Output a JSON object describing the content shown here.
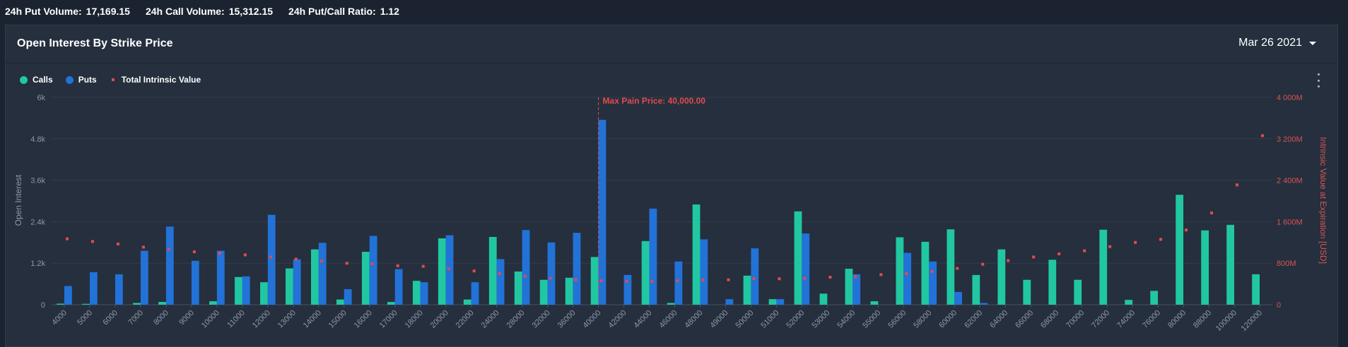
{
  "stats": {
    "put_volume_label": "24h Put Volume:",
    "put_volume_value": "17,169.15",
    "call_volume_label": "24h Call Volume:",
    "call_volume_value": "15,312.15",
    "ratio_label": "24h Put/Call Ratio:",
    "ratio_value": "1.12"
  },
  "panel": {
    "title": "Open Interest By Strike Price",
    "date": "Mar 26 2021"
  },
  "legend": {
    "calls": "Calls",
    "puts": "Puts",
    "intrinsic": "Total Intrinsic Value"
  },
  "icons": {
    "caret": "chevron-down-icon",
    "menu": "more-vertical-icon"
  },
  "colors": {
    "calls": "#21c7a1",
    "puts": "#2272d8",
    "intrinsic": "#e64a4a",
    "background": "#1b2330",
    "panel": "#252f3e"
  },
  "chart_data": {
    "type": "bar",
    "title": "Open Interest By Strike Price",
    "xlabel": "",
    "ylabel": "Open Interest",
    "y2label": "Intrinsic Value at Expiration [USD]",
    "ylim": [
      0,
      6000
    ],
    "y2lim": [
      0,
      4000000000
    ],
    "y_ticks": [
      "0",
      "1.2k",
      "2.4k",
      "3.6k",
      "4.8k",
      "6k"
    ],
    "y2_ticks": [
      "0",
      "800M",
      "1 600M",
      "2 400M",
      "3 200M",
      "4 000M"
    ],
    "max_pain_label": "Max Pain Price: 40,000.00",
    "max_pain_strike": "40000",
    "categories": [
      "4000",
      "5000",
      "6000",
      "7000",
      "8000",
      "9000",
      "10000",
      "11000",
      "12000",
      "13000",
      "14000",
      "15000",
      "16000",
      "17000",
      "18000",
      "20000",
      "22000",
      "24000",
      "28000",
      "32000",
      "36000",
      "40000",
      "42000",
      "44000",
      "46000",
      "48000",
      "49000",
      "50000",
      "51000",
      "52000",
      "53000",
      "54000",
      "55000",
      "56000",
      "58000",
      "60000",
      "62000",
      "64000",
      "66000",
      "68000",
      "70000",
      "72000",
      "74000",
      "76000",
      "80000",
      "88000",
      "100000",
      "120000"
    ],
    "series": [
      {
        "name": "Calls",
        "values": [
          30,
          25,
          0,
          50,
          80,
          0,
          100,
          800,
          650,
          1050,
          1600,
          150,
          1530,
          80,
          690,
          1920,
          150,
          1960,
          960,
          720,
          780,
          1380,
          0,
          1840,
          50,
          2900,
          0,
          840,
          160,
          2700,
          320,
          1040,
          100,
          1950,
          1820,
          2180,
          860,
          1600,
          720,
          1300,
          720,
          2170,
          140,
          400,
          3180,
          2150,
          2310,
          880
        ]
      },
      {
        "name": "Puts",
        "values": [
          540,
          940,
          880,
          1560,
          2260,
          1270,
          1560,
          820,
          2600,
          1310,
          1790,
          450,
          1990,
          1030,
          650,
          2010,
          650,
          1320,
          2160,
          1800,
          2080,
          5350,
          860,
          2780,
          1250,
          1890,
          160,
          1630,
          160,
          2060,
          0,
          880,
          0,
          1500,
          1250,
          370,
          50,
          0,
          0,
          0,
          0,
          0,
          0,
          0,
          0,
          0,
          0,
          0
        ]
      },
      {
        "name": "Total Intrinsic Value",
        "values": [
          1270000000,
          1220000000,
          1170000000,
          1110000000,
          1070000000,
          1020000000,
          990000000,
          960000000,
          920000000,
          880000000,
          840000000,
          800000000,
          790000000,
          750000000,
          740000000,
          690000000,
          650000000,
          600000000,
          550000000,
          510000000,
          480000000,
          460000000,
          450000000,
          450000000,
          460000000,
          480000000,
          480000000,
          500000000,
          500000000,
          510000000,
          530000000,
          540000000,
          580000000,
          600000000,
          640000000,
          700000000,
          780000000,
          850000000,
          920000000,
          980000000,
          1040000000,
          1120000000,
          1200000000,
          1260000000,
          1440000000,
          1770000000,
          2310000000,
          3260000000
        ]
      }
    ]
  }
}
